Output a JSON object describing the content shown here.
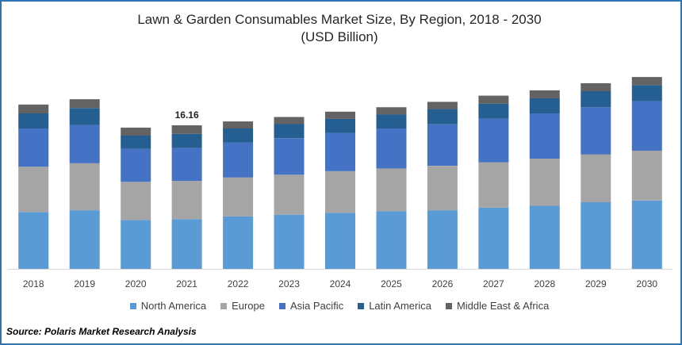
{
  "title_line1": "Lawn & Garden Consumables Market Size, By Region, 2018 - 2030",
  "title_line2": "(USD Billion)",
  "source": "Source: Polaris  Market Research Analysis",
  "chart_data": {
    "type": "bar",
    "stacked": true,
    "title": "Lawn & Garden Consumables Market Size, By Region, 2018 - 2030 (USD Billion)",
    "categories": [
      "2018",
      "2019",
      "2020",
      "2021",
      "2022",
      "2023",
      "2024",
      "2025",
      "2026",
      "2027",
      "2028",
      "2029",
      "2030"
    ],
    "series": [
      {
        "name": "North America",
        "color": "#5b9bd5",
        "values": [
          6.4,
          6.6,
          5.5,
          5.6,
          5.9,
          6.1,
          6.3,
          6.5,
          6.6,
          6.9,
          7.1,
          7.5,
          7.7
        ]
      },
      {
        "name": "Europe",
        "color": "#a5a5a5",
        "values": [
          5.1,
          5.3,
          4.3,
          4.3,
          4.4,
          4.5,
          4.7,
          4.8,
          5.0,
          5.1,
          5.3,
          5.4,
          5.6
        ]
      },
      {
        "name": "Asia Pacific",
        "color": "#4472c4",
        "values": [
          4.3,
          4.3,
          3.7,
          3.7,
          3.9,
          4.1,
          4.3,
          4.5,
          4.7,
          4.9,
          5.1,
          5.3,
          5.6
        ]
      },
      {
        "name": "Latin America",
        "color": "#255e91",
        "values": [
          1.7,
          1.9,
          1.5,
          1.6,
          1.6,
          1.6,
          1.6,
          1.6,
          1.7,
          1.7,
          1.7,
          1.8,
          1.8
        ]
      },
      {
        "name": "Middle East & Africa",
        "color": "#636363",
        "values": [
          1.0,
          1.0,
          0.9,
          0.96,
          0.8,
          0.8,
          0.8,
          0.8,
          0.8,
          0.9,
          0.9,
          0.9,
          0.9
        ]
      }
    ],
    "annotations": [
      {
        "category": "2021",
        "label": "16.16"
      }
    ],
    "ylim": [
      0,
      22
    ],
    "xlabel": "",
    "ylabel": "",
    "legend_position": "bottom",
    "grid": false
  }
}
